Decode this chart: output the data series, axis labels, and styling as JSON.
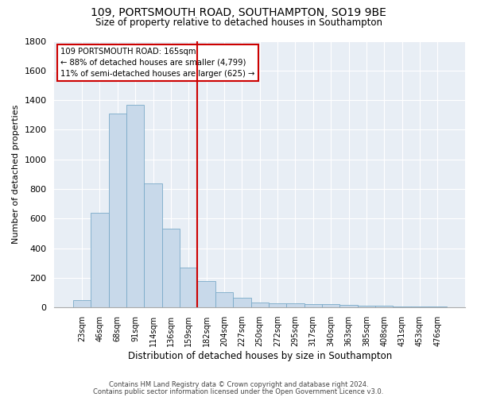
{
  "title1": "109, PORTSMOUTH ROAD, SOUTHAMPTON, SO19 9BE",
  "title2": "Size of property relative to detached houses in Southampton",
  "xlabel": "Distribution of detached houses by size in Southampton",
  "ylabel": "Number of detached properties",
  "categories": [
    "23sqm",
    "46sqm",
    "68sqm",
    "91sqm",
    "114sqm",
    "136sqm",
    "159sqm",
    "182sqm",
    "204sqm",
    "227sqm",
    "250sqm",
    "272sqm",
    "295sqm",
    "317sqm",
    "340sqm",
    "363sqm",
    "385sqm",
    "408sqm",
    "431sqm",
    "453sqm",
    "476sqm"
  ],
  "values": [
    50,
    640,
    1310,
    1370,
    840,
    530,
    270,
    180,
    105,
    65,
    35,
    30,
    30,
    20,
    20,
    15,
    10,
    10,
    8,
    5,
    8
  ],
  "bar_color": "#c8d9ea",
  "bar_edge_color": "#7aaac8",
  "vline_index": 6.5,
  "annotation_text_line1": "109 PORTSMOUTH ROAD: 165sqm",
  "annotation_text_line2": "← 88% of detached houses are smaller (4,799)",
  "annotation_text_line3": "11% of semi-detached houses are larger (625) →",
  "vline_color": "#cc0000",
  "box_edge_color": "#cc0000",
  "footnote1": "Contains HM Land Registry data © Crown copyright and database right 2024.",
  "footnote2": "Contains public sector information licensed under the Open Government Licence v3.0.",
  "bg_color": "#e8eef5",
  "fig_bg_color": "#ffffff",
  "ylim": [
    0,
    1800
  ],
  "yticks": [
    0,
    200,
    400,
    600,
    800,
    1000,
    1200,
    1400,
    1600,
    1800
  ]
}
